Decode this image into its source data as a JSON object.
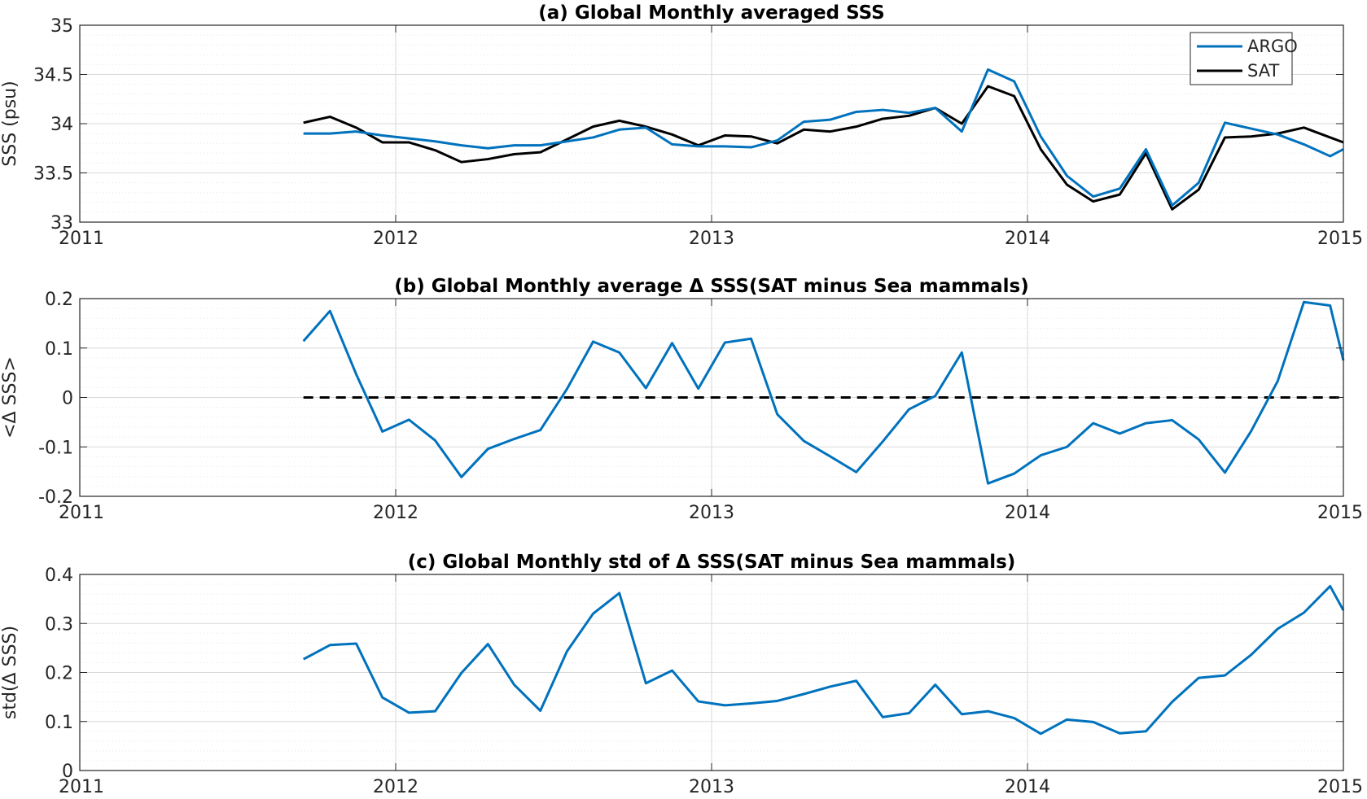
{
  "colors": {
    "argo": "#0072BD",
    "sat": "#000000",
    "axis": "#262626",
    "grid_major": "#d9d9d9",
    "grid_minor": "#e8e8e8"
  },
  "chart_data": [
    {
      "id": "a",
      "type": "line",
      "title": "(a) Global Monthly averaged SSS",
      "ylabel": "SSS (psu)",
      "xlabel": "",
      "xlim": [
        2011,
        2015
      ],
      "ylim": [
        33,
        35
      ],
      "xticks": [
        2011,
        2012,
        2013,
        2014,
        2015
      ],
      "xtick_labels": [
        "2011",
        "2012",
        "2013",
        "2014",
        "2015"
      ],
      "yticks": [
        33,
        33.5,
        34,
        34.5,
        35
      ],
      "ytick_labels": [
        "33",
        "33.5",
        "34",
        "34.5",
        "35"
      ],
      "y_minor_step": 0.1,
      "grid": true,
      "legend_position": "top-right",
      "series": [
        {
          "name": "ARGO",
          "color": "#0072BD",
          "x": [
            2011.708,
            2011.792,
            2011.875,
            2011.958,
            2012.042,
            2012.125,
            2012.208,
            2012.292,
            2012.375,
            2012.458,
            2012.542,
            2012.625,
            2012.708,
            2012.792,
            2012.875,
            2012.958,
            2013.042,
            2013.125,
            2013.208,
            2013.292,
            2013.375,
            2013.458,
            2013.542,
            2013.625,
            2013.708,
            2013.792,
            2013.875,
            2013.958,
            2014.042,
            2014.125,
            2014.208,
            2014.292,
            2014.375,
            2014.458,
            2014.542,
            2014.625,
            2014.708,
            2014.792,
            2014.875,
            2014.958,
            2015.0
          ],
          "y": [
            33.9,
            33.9,
            33.92,
            33.88,
            33.85,
            33.82,
            33.78,
            33.75,
            33.78,
            33.78,
            33.82,
            33.86,
            33.94,
            33.96,
            33.79,
            33.77,
            33.77,
            33.76,
            33.83,
            34.02,
            34.04,
            34.12,
            34.14,
            34.11,
            34.16,
            33.92,
            34.55,
            34.43,
            33.87,
            33.47,
            33.26,
            33.34,
            33.74,
            33.17,
            33.4,
            34.01,
            33.95,
            33.89,
            33.79,
            33.67,
            33.74
          ]
        },
        {
          "name": "SAT",
          "color": "#000000",
          "x": [
            2011.708,
            2011.792,
            2011.875,
            2011.958,
            2012.042,
            2012.125,
            2012.208,
            2012.292,
            2012.375,
            2012.458,
            2012.542,
            2012.625,
            2012.708,
            2012.792,
            2012.875,
            2012.958,
            2013.042,
            2013.125,
            2013.208,
            2013.292,
            2013.375,
            2013.458,
            2013.542,
            2013.625,
            2013.708,
            2013.792,
            2013.875,
            2013.958,
            2014.042,
            2014.125,
            2014.208,
            2014.292,
            2014.375,
            2014.458,
            2014.542,
            2014.625,
            2014.708,
            2014.792,
            2014.875,
            2014.958,
            2015.0
          ],
          "y": [
            34.01,
            34.07,
            33.96,
            33.81,
            33.81,
            33.73,
            33.61,
            33.64,
            33.69,
            33.71,
            33.84,
            33.97,
            34.03,
            33.97,
            33.89,
            33.78,
            33.88,
            33.87,
            33.8,
            33.94,
            33.92,
            33.97,
            34.05,
            34.08,
            34.16,
            34.0,
            34.38,
            34.28,
            33.74,
            33.38,
            33.21,
            33.28,
            33.7,
            33.13,
            33.33,
            33.86,
            33.87,
            33.9,
            33.96,
            33.86,
            33.81
          ]
        }
      ]
    },
    {
      "id": "b",
      "type": "line",
      "title": "(b) Global Monthly average Δ SSS(SAT minus Sea mammals)",
      "ylabel": "<Δ SSS>",
      "xlabel": "",
      "xlim": [
        2011,
        2015
      ],
      "ylim": [
        -0.2,
        0.2
      ],
      "xticks": [
        2011,
        2012,
        2013,
        2014,
        2015
      ],
      "xtick_labels": [
        "2011",
        "2012",
        "2013",
        "2014",
        "2015"
      ],
      "yticks": [
        -0.2,
        -0.1,
        0,
        0.1,
        0.2
      ],
      "ytick_labels": [
        "-0.2",
        "-0.1",
        "0",
        "0.1",
        "0.2"
      ],
      "y_minor_step": 0.02,
      "grid": true,
      "reference_line": {
        "y": 0,
        "x_from": 2011.708,
        "x_to": 2015.0,
        "style": "dashed",
        "color": "#000000"
      },
      "series": [
        {
          "color": "#0072BD",
          "x": [
            2011.708,
            2011.792,
            2011.875,
            2011.958,
            2012.042,
            2012.125,
            2012.208,
            2012.292,
            2012.375,
            2012.458,
            2012.542,
            2012.625,
            2012.708,
            2012.792,
            2012.875,
            2012.958,
            2013.042,
            2013.125,
            2013.208,
            2013.292,
            2013.375,
            2013.458,
            2013.542,
            2013.625,
            2013.708,
            2013.792,
            2013.875,
            2013.958,
            2014.042,
            2014.125,
            2014.208,
            2014.292,
            2014.375,
            2014.458,
            2014.542,
            2014.625,
            2014.708,
            2014.792,
            2014.875,
            2014.958,
            2015.0
          ],
          "y": [
            0.114,
            0.175,
            0.047,
            -0.069,
            -0.045,
            -0.087,
            -0.161,
            -0.104,
            -0.084,
            -0.066,
            0.017,
            0.113,
            0.091,
            0.019,
            0.11,
            0.018,
            0.111,
            0.119,
            -0.034,
            -0.088,
            -0.119,
            -0.151,
            -0.089,
            -0.024,
            0.003,
            0.091,
            -0.174,
            -0.154,
            -0.117,
            -0.1,
            -0.052,
            -0.073,
            -0.052,
            -0.046,
            -0.085,
            -0.152,
            -0.068,
            0.033,
            0.193,
            0.186,
            0.075
          ]
        }
      ]
    },
    {
      "id": "c",
      "type": "line",
      "title": "(c) Global Monthly std of Δ SSS(SAT minus Sea mammals)",
      "ylabel": "std(Δ SSS)",
      "xlabel": "",
      "xlim": [
        2011,
        2015
      ],
      "ylim": [
        0,
        0.4
      ],
      "xticks": [
        2011,
        2012,
        2013,
        2014,
        2015
      ],
      "xtick_labels": [
        "2011",
        "2012",
        "2013",
        "2014",
        "2015"
      ],
      "yticks": [
        0,
        0.1,
        0.2,
        0.3,
        0.4
      ],
      "ytick_labels": [
        "0",
        "0.1",
        "0.2",
        "0.3",
        "0.4"
      ],
      "y_minor_step": 0.02,
      "grid": true,
      "series": [
        {
          "color": "#0072BD",
          "x": [
            2011.708,
            2011.792,
            2011.875,
            2011.958,
            2012.042,
            2012.125,
            2012.208,
            2012.292,
            2012.375,
            2012.458,
            2012.542,
            2012.625,
            2012.708,
            2012.792,
            2012.875,
            2012.958,
            2013.042,
            2013.125,
            2013.208,
            2013.292,
            2013.375,
            2013.458,
            2013.542,
            2013.625,
            2013.708,
            2013.792,
            2013.875,
            2013.958,
            2014.042,
            2014.125,
            2014.208,
            2014.292,
            2014.375,
            2014.458,
            2014.542,
            2014.625,
            2014.708,
            2014.792,
            2014.875,
            2014.958,
            2015.0
          ],
          "y": [
            0.227,
            0.256,
            0.259,
            0.149,
            0.118,
            0.121,
            0.199,
            0.258,
            0.175,
            0.122,
            0.243,
            0.32,
            0.362,
            0.178,
            0.204,
            0.141,
            0.133,
            0.137,
            0.142,
            0.156,
            0.171,
            0.183,
            0.109,
            0.117,
            0.175,
            0.115,
            0.121,
            0.107,
            0.075,
            0.104,
            0.099,
            0.076,
            0.08,
            0.14,
            0.189,
            0.194,
            0.236,
            0.289,
            0.322,
            0.376,
            0.327
          ]
        }
      ]
    }
  ]
}
